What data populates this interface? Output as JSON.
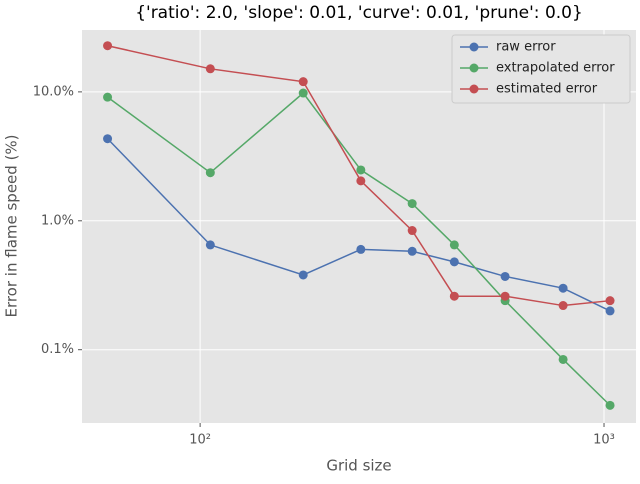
{
  "chart_data": {
    "type": "line",
    "title": "{'ratio': 2.0, 'slope': 0.01, 'curve': 0.01, 'prune': 0.0}",
    "x_label": "Grid size",
    "y_label": "Error in flame speed (%)",
    "x": [
      59,
      106,
      180,
      250,
      335,
      426,
      569,
      792,
      1035
    ],
    "series": [
      {
        "name": "raw error",
        "color": "#4c72b0",
        "values": [
          4.33,
          0.65,
          0.38,
          0.6,
          0.58,
          0.48,
          0.37,
          0.3,
          0.2
        ]
      },
      {
        "name": "extrapolated error",
        "color": "#55a868",
        "values": [
          9.1,
          2.36,
          9.8,
          2.48,
          1.36,
          0.65,
          0.24,
          0.084,
          0.037
        ]
      },
      {
        "name": "estimated error",
        "color": "#c44e52",
        "values": [
          22.8,
          15.1,
          12.0,
          2.04,
          0.84,
          0.26,
          0.26,
          0.22,
          0.24
        ]
      }
    ],
    "xlim": [
      51,
      1200
    ],
    "ylim": [
      0.027,
      30.2
    ],
    "xticks": [
      {
        "value": 100,
        "label": "10²"
      },
      {
        "value": 1000,
        "label": "10³"
      }
    ],
    "yticks": [
      {
        "value": 0.1,
        "label": "0.1%"
      },
      {
        "value": 1,
        "label": "1.0%"
      },
      {
        "value": 10,
        "label": "10.0%"
      }
    ],
    "xscale": "log",
    "yscale": "log",
    "grid": true,
    "legend": "upper right"
  }
}
